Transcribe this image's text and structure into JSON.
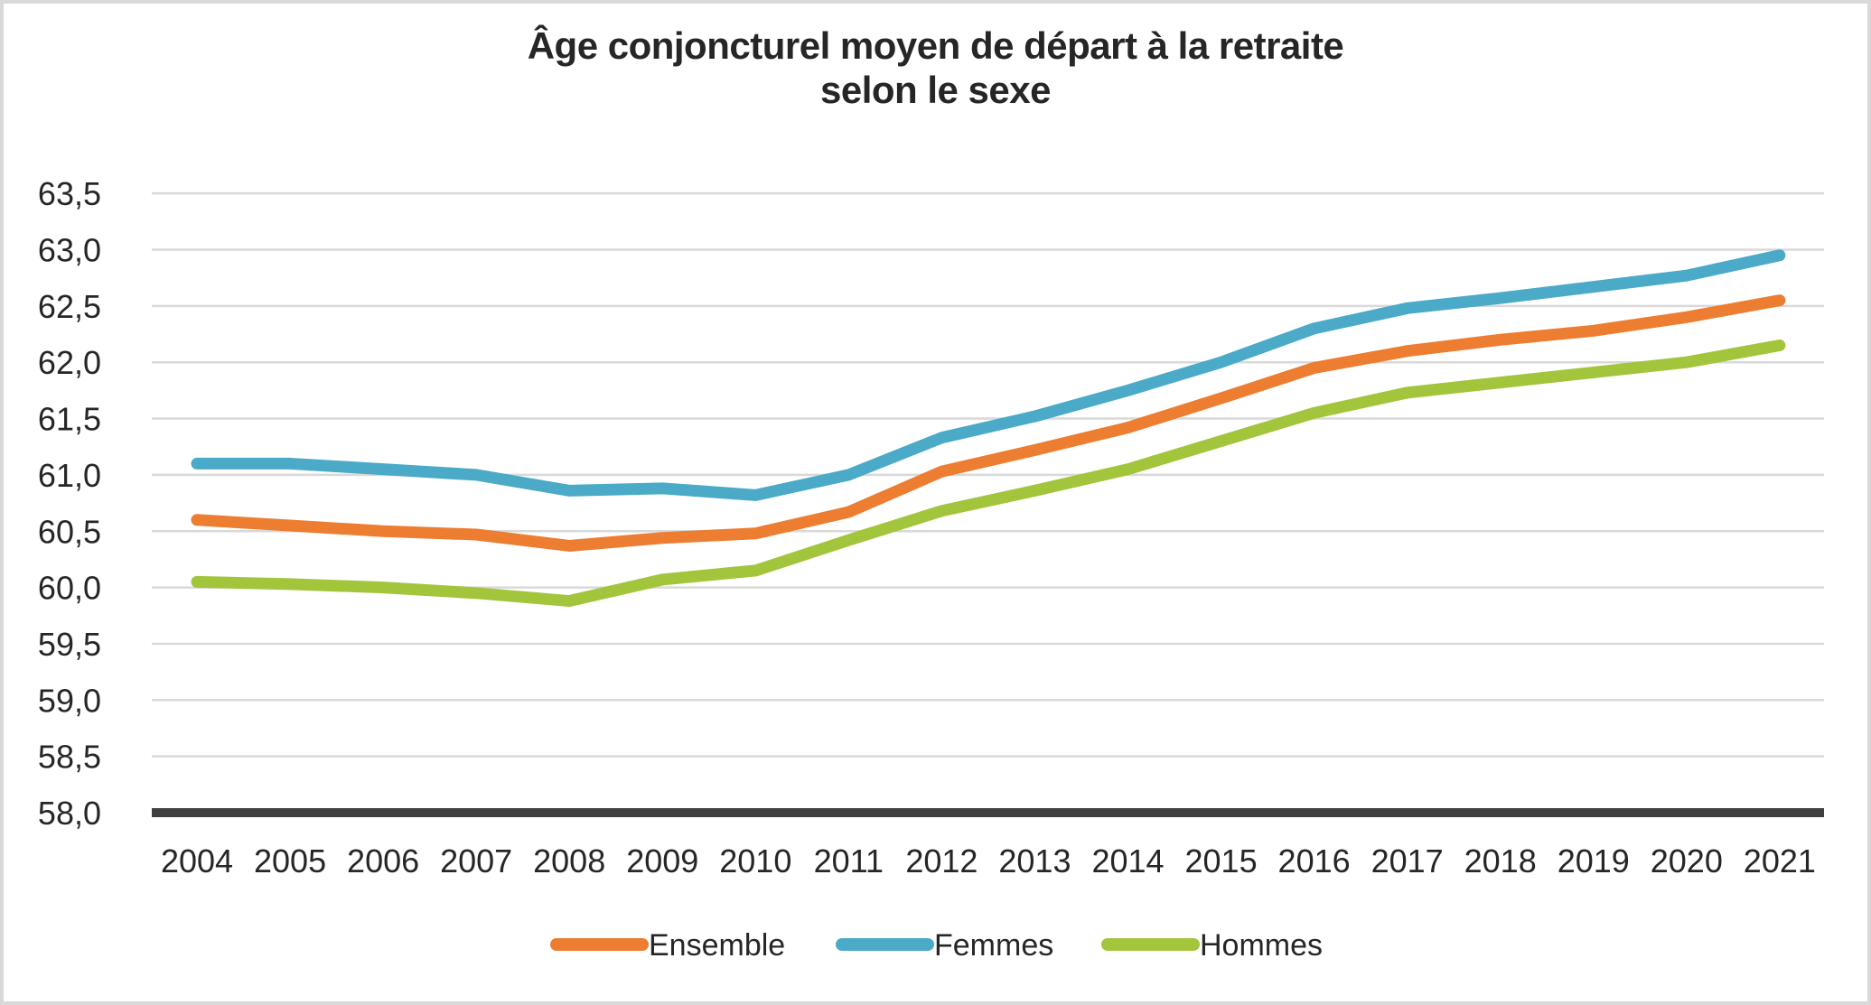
{
  "colors": {
    "background": "#FFFFFF",
    "frame_border": "#D9D9D9",
    "gridline": "#D9D9D9",
    "axis_line": "#404040",
    "text": "#262626",
    "ensemble": "#ED7D31",
    "femmes": "#4AAAC8",
    "hommes": "#A2C53C"
  },
  "chart_data": {
    "type": "line",
    "title": "Âge conjoncturel moyen de départ à la retraite selon le sexe",
    "title_lines": [
      "Âge conjoncturel moyen de départ à la retraite",
      "selon le sexe"
    ],
    "xlabel": "",
    "ylabel": "",
    "grid": true,
    "legend_position": "bottom",
    "decimal_separator": ",",
    "x": [
      2004,
      2005,
      2006,
      2007,
      2008,
      2009,
      2010,
      2011,
      2012,
      2013,
      2014,
      2015,
      2016,
      2017,
      2018,
      2019,
      2020,
      2021
    ],
    "x_tick_labels": [
      "2004",
      "2005",
      "2006",
      "2007",
      "2008",
      "2009",
      "2010",
      "2011",
      "2012",
      "2013",
      "2014",
      "2015",
      "2016",
      "2017",
      "2018",
      "2019",
      "2020",
      "2021"
    ],
    "y_axis": {
      "min": 58.0,
      "max": 63.5,
      "step": 0.5,
      "tick_labels": [
        "58,0",
        "58,5",
        "59,0",
        "59,5",
        "60,0",
        "60,5",
        "61,0",
        "61,5",
        "62,0",
        "62,5",
        "63,0",
        "63,5"
      ]
    },
    "series": [
      {
        "name": "Ensemble",
        "color": "#ED7D31",
        "values": [
          60.6,
          60.55,
          60.5,
          60.47,
          60.37,
          60.44,
          60.48,
          60.67,
          61.03,
          61.22,
          61.42,
          61.68,
          61.95,
          62.1,
          62.2,
          62.28,
          62.4,
          62.55
        ]
      },
      {
        "name": "Femmes",
        "color": "#4AAAC8",
        "values": [
          61.1,
          61.1,
          61.05,
          61.0,
          60.86,
          60.88,
          60.82,
          61.0,
          61.33,
          61.52,
          61.75,
          62.0,
          62.3,
          62.48,
          62.57,
          62.67,
          62.77,
          62.95
        ]
      },
      {
        "name": "Hommes",
        "color": "#A2C53C",
        "values": [
          60.05,
          60.03,
          60.0,
          59.95,
          59.88,
          60.07,
          60.15,
          60.42,
          60.68,
          60.86,
          61.05,
          61.3,
          61.55,
          61.73,
          61.82,
          61.91,
          62.0,
          62.15
        ]
      }
    ]
  }
}
